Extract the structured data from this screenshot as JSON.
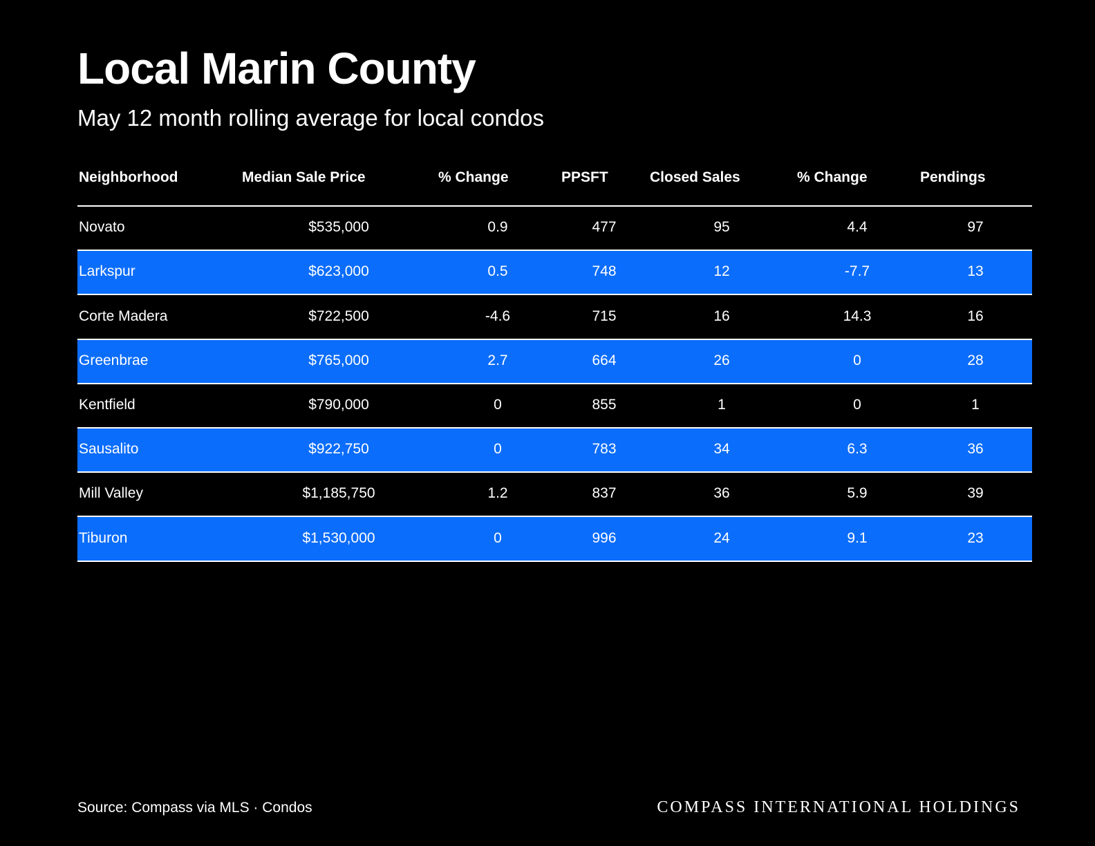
{
  "header": {
    "title": "Local Marin County",
    "subtitle": "May 12 month rolling average for local condos"
  },
  "table": {
    "columns": [
      "Neighborhood",
      "Median Sale Price",
      "% Change",
      "PPSFT",
      "Closed Sales",
      "% Change",
      "Pendings"
    ],
    "rows": [
      [
        "Novato",
        "$535,000",
        "0.9",
        "477",
        "95",
        "4.4",
        "97"
      ],
      [
        "Larkspur",
        "$623,000",
        "0.5",
        "748",
        "12",
        "-7.7",
        "13"
      ],
      [
        "Corte Madera",
        "$722,500",
        "-4.6",
        "715",
        "16",
        "14.3",
        "16"
      ],
      [
        "Greenbrae",
        "$765,000",
        "2.7",
        "664",
        "26",
        "0",
        "28"
      ],
      [
        "Kentfield",
        "$790,000",
        "0",
        "855",
        "1",
        "0",
        "1"
      ],
      [
        "Sausalito",
        "$922,750",
        "0",
        "783",
        "34",
        "6.3",
        "36"
      ],
      [
        "Mill Valley",
        "$1,185,750",
        "1.2",
        "837",
        "36",
        "5.9",
        "39"
      ],
      [
        "Tiburon",
        "$1,530,000",
        "0",
        "996",
        "24",
        "9.1",
        "23"
      ]
    ]
  },
  "footer": {
    "source": "Source: Compass via MLS · Condos",
    "brand": "COMPASS INTERNATIONAL HOLDINGS"
  }
}
